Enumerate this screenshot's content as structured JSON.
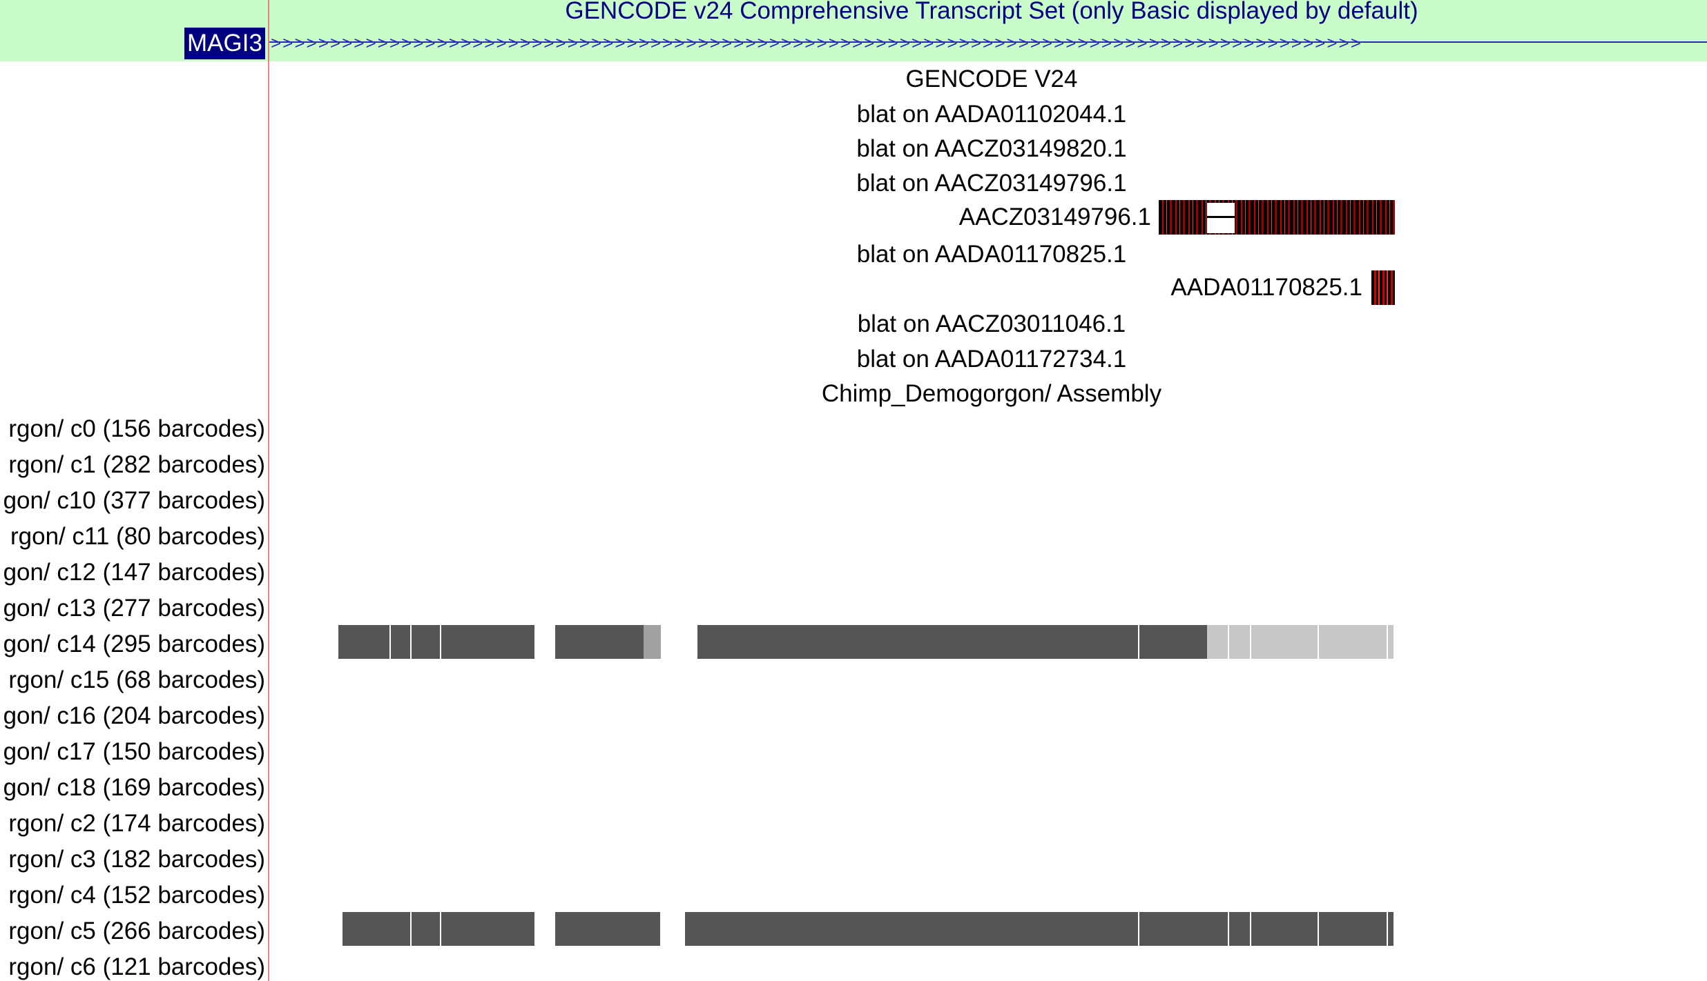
{
  "gencode_header": {
    "title": "GENCODE v24 Comprehensive Transcript Set (only Basic displayed by default)",
    "gene_label": "MAGI3",
    "arrows": ">>>>>>>>>>>>>>>>>>>>>>>>>>>>>>>>>>>>>>>>>>>>>>>>>>>>>>>>>>>>>>>>>>>>>>>>>>>>>>>>>>>>>>>>>>>>"
  },
  "tracks": {
    "gencode_v24": "GENCODE V24",
    "blat_aada01102044": "blat on AADA01102044.1",
    "blat_aacz03149820": "blat on AACZ03149820.1",
    "blat_aacz03149796": "blat on AACZ03149796.1",
    "item_aacz03149796": "AACZ03149796.1",
    "blat_aada01170825": "blat on AADA01170825.1",
    "item_aada01170825": "AADA01170825.1",
    "blat_aacz03011046": "blat on AACZ03011046.1",
    "blat_aada01172734": "blat on AADA01172734.1",
    "chimp_assembly": "Chimp_Demogorgon/ Assembly"
  },
  "clusters": [
    "rgon/ c0 (156 barcodes)",
    "rgon/ c1 (282 barcodes)",
    "gon/ c10 (377 barcodes)",
    "rgon/ c11 (80 barcodes)",
    "gon/ c12 (147 barcodes)",
    "gon/ c13 (277 barcodes)",
    "gon/ c14 (295 barcodes)",
    "rgon/ c15 (68 barcodes)",
    "gon/ c16 (204 barcodes)",
    "gon/ c17 (150 barcodes)",
    "gon/ c18 (169 barcodes)",
    "rgon/ c2 (174 barcodes)",
    "rgon/ c3 (182 barcodes)",
    "rgon/ c4 (152 barcodes)",
    "rgon/ c5 (266 barcodes)",
    "rgon/ c6 (121 barcodes)"
  ],
  "colors": {
    "header_band": "#c8fcc8",
    "gene_label_bg": "#000080",
    "coverage_dark": "#555555",
    "coverage_light": "#c6c6c6",
    "alignment_red": "#cc0000",
    "divider": "#f08080"
  }
}
